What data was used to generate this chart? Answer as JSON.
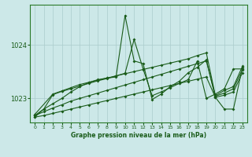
{
  "background_color": "#cce8e8",
  "grid_color": "#aacccc",
  "line_color": "#1a5c1a",
  "xlim": [
    -0.5,
    23.5
  ],
  "ylim": [
    1022.55,
    1024.75
  ],
  "yticks": [
    1023,
    1024
  ],
  "ytick_labels": [
    "1023",
    "1024"
  ],
  "xticks": [
    0,
    1,
    2,
    3,
    4,
    5,
    6,
    7,
    8,
    9,
    10,
    11,
    12,
    13,
    14,
    15,
    16,
    17,
    18,
    19,
    20,
    21,
    22,
    23
  ],
  "xlabel": "Graphe pression niveau de la mer (hPa)",
  "series": [
    {
      "x": [
        0,
        1,
        2,
        3,
        4,
        5,
        6,
        7,
        8,
        9,
        10,
        11,
        12,
        13,
        14,
        15,
        16,
        17,
        18,
        19,
        20,
        21,
        22,
        23
      ],
      "y": [
        1022.65,
        1022.68,
        1022.72,
        1022.76,
        1022.8,
        1022.84,
        1022.88,
        1022.92,
        1022.96,
        1023.0,
        1023.04,
        1023.08,
        1023.12,
        1023.16,
        1023.2,
        1023.24,
        1023.28,
        1023.32,
        1023.36,
        1023.4,
        1023.02,
        1023.06,
        1023.12,
        1023.48
      ]
    },
    {
      "x": [
        0,
        1,
        2,
        3,
        4,
        5,
        6,
        7,
        8,
        9,
        10,
        11,
        12,
        13,
        14,
        15,
        16,
        17,
        18,
        19,
        20,
        21,
        22,
        23
      ],
      "y": [
        1022.68,
        1022.75,
        1022.82,
        1022.88,
        1022.95,
        1023.0,
        1023.05,
        1023.1,
        1023.15,
        1023.2,
        1023.25,
        1023.3,
        1023.35,
        1023.4,
        1023.45,
        1023.5,
        1023.55,
        1023.6,
        1023.65,
        1023.7,
        1023.04,
        1023.1,
        1023.18,
        1023.54
      ]
    },
    {
      "x": [
        0,
        2,
        3,
        4,
        5,
        6,
        7,
        8,
        9,
        10,
        11,
        12,
        13,
        14,
        15,
        16,
        17,
        18,
        19,
        20,
        21,
        22,
        23
      ],
      "y": [
        1022.7,
        1023.08,
        1023.14,
        1023.2,
        1023.26,
        1023.3,
        1023.34,
        1023.38,
        1023.42,
        1023.46,
        1023.5,
        1023.54,
        1023.58,
        1023.62,
        1023.66,
        1023.7,
        1023.74,
        1023.8,
        1023.85,
        1023.05,
        1023.15,
        1023.22,
        1023.6
      ]
    },
    {
      "x": [
        0,
        1,
        2,
        3,
        4,
        5,
        6,
        7,
        8,
        9,
        10,
        11,
        12,
        13,
        14,
        15,
        16,
        17,
        18,
        19,
        20,
        21,
        22,
        23
      ],
      "y": [
        1022.65,
        1022.8,
        1023.07,
        1023.13,
        1023.18,
        1023.23,
        1023.28,
        1023.33,
        1023.37,
        1023.42,
        1023.47,
        1024.1,
        1023.55,
        1023.05,
        1023.12,
        1023.2,
        1023.28,
        1023.35,
        1023.7,
        1023.0,
        1023.08,
        1023.18,
        1023.55,
        1023.55
      ]
    },
    {
      "x": [
        0,
        1,
        2,
        3,
        4,
        5,
        6,
        7,
        8,
        9,
        10,
        11,
        12,
        13,
        14,
        15,
        16,
        17,
        18,
        19,
        20,
        21,
        22,
        23
      ],
      "y": [
        1022.68,
        1022.8,
        1022.9,
        1023.0,
        1023.12,
        1023.22,
        1023.3,
        1023.35,
        1023.38,
        1023.4,
        1024.55,
        1023.7,
        1023.65,
        1022.98,
        1023.08,
        1023.22,
        1023.32,
        1023.48,
        1023.58,
        1023.72,
        1023.02,
        1022.8,
        1022.8,
        1023.58
      ]
    }
  ]
}
